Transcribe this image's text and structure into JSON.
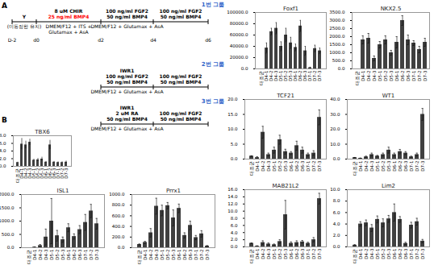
{
  "diagram": {
    "panel_a": "A",
    "panel_b": "B",
    "days": [
      "D-2",
      "d0",
      "d2",
      "d4",
      "d6"
    ],
    "group_color": "#2e62c9",
    "groups": [
      {
        "name": "1번 그룹",
        "above": [
          {
            "from": "D-2",
            "to": "d0",
            "lines": [
              "Y"
            ]
          },
          {
            "from": "d0",
            "to": "d2",
            "lines": [
              "8 uM CHIR",
              {
                "text": "25 ng/ml BMP4",
                "color": "#ff0000"
              }
            ]
          },
          {
            "from": "d2",
            "to": "d4",
            "lines": [
              "100 ng/ml FGF2",
              "50 ng/ml BMP4"
            ]
          },
          {
            "from": "d4",
            "to": "d6",
            "lines": [
              "100 ng/ml FGF2",
              "50 ng/ml BMP4"
            ]
          }
        ],
        "below": [
          {
            "from": "D-2",
            "to": "d0",
            "lines": [
              "(미동정한 유지)"
            ]
          },
          {
            "from": "d0",
            "to": "d2",
            "lines": [
              "DMEM/F12 + ITS +",
              "Glutamax + AsA"
            ]
          },
          {
            "from": "d2",
            "to": "d4",
            "lines": [
              "DMEM/F12 + Glutamax + AsA"
            ]
          }
        ]
      },
      {
        "name": "2번 그룹",
        "above": [
          {
            "from": "d2",
            "to": "d4",
            "lines": [
              "IWR1",
              "100 ng/ml FGF2",
              "50 ng/ml BMP4"
            ]
          },
          {
            "from": "d4",
            "to": "d6",
            "lines": [
              "100 ng/ml FGF2",
              "50 ng/ml BMP4"
            ]
          }
        ],
        "below": [
          {
            "from": "d2",
            "to": "d4",
            "lines": [
              "DMEM/F12 + Glutamax + AsA"
            ]
          }
        ]
      },
      {
        "name": "3번 그룹",
        "above": [
          {
            "from": "d2",
            "to": "d4",
            "lines": [
              "IWR1",
              "2 uM RA",
              "50 ng/ml BMP4"
            ]
          },
          {
            "from": "d4",
            "to": "d6",
            "lines": [
              "100 ng/ml FGF2",
              "50 ng/ml BMP4"
            ]
          }
        ],
        "below": [
          {
            "from": "d2",
            "to": "d4",
            "lines": [
              "DMEM/F12 + Glutamax + AsA"
            ]
          }
        ]
      }
    ]
  },
  "chart_data": [
    {
      "type": "bar",
      "title": "Foxf1",
      "color": "#404040",
      "grid": false,
      "categories": [
        "대조군",
        "D4-1",
        "D4-2",
        "D4-3",
        "D5-1",
        "D5-2",
        "D5-3",
        "D6-1",
        "D6-2",
        "D6-3",
        "D7-1",
        "D7-2",
        "D7-3"
      ],
      "values": [
        0,
        37000,
        66000,
        72000,
        40000,
        60000,
        46000,
        38000,
        76000,
        32000,
        2000,
        36000,
        32000
      ],
      "errors": [
        0,
        9000,
        6000,
        10000,
        8000,
        12000,
        10000,
        6000,
        10000,
        8000,
        1000,
        6000,
        5000
      ],
      "ylim": [
        0,
        100000
      ],
      "yticks": [
        {
          "value": 0,
          "label": "0.0"
        },
        {
          "value": 20000,
          "label": "20000.0"
        },
        {
          "value": 40000,
          "label": "40000.0"
        },
        {
          "value": 60000,
          "label": "60000.0"
        },
        {
          "value": 80000,
          "label": "80000.0"
        },
        {
          "value": 100000,
          "label": "100000.0"
        }
      ]
    },
    {
      "type": "bar",
      "title": "NKX2.5",
      "color": "#404040",
      "grid": false,
      "categories": [
        "대조군",
        "D4-1",
        "D4-2",
        "D4-3",
        "D5-1",
        "D5-2",
        "D5-3",
        "D6-1",
        "D6-2",
        "D6-3",
        "D7-1",
        "D7-2",
        "D7-3"
      ],
      "values": [
        0,
        1800,
        1900,
        650,
        1500,
        1800,
        1000,
        1650,
        3000,
        1800,
        1600,
        1200,
        1650
      ],
      "errors": [
        0,
        250,
        300,
        150,
        200,
        250,
        150,
        350,
        300,
        300,
        150,
        200,
        250
      ],
      "ylim": [
        0,
        3500
      ],
      "yticks": [
        {
          "value": 0,
          "label": "0.0"
        },
        {
          "value": 500,
          "label": "500.0"
        },
        {
          "value": 1000,
          "label": "1000.0"
        },
        {
          "value": 1500,
          "label": "1500.0"
        },
        {
          "value": 2000,
          "label": "2000.0"
        },
        {
          "value": 2500,
          "label": "2500.0"
        },
        {
          "value": 3000,
          "label": "3000.0"
        },
        {
          "value": 3500,
          "label": "3500.0"
        }
      ]
    },
    {
      "type": "bar",
      "title": "TCF21",
      "color": "#404040",
      "grid": false,
      "categories": [
        "대조군",
        "D4-1",
        "D4-2",
        "D4-3",
        "D5-1",
        "D5-2",
        "D5-3",
        "D6-1",
        "D6-2",
        "D6-3",
        "D7-1",
        "D7-2",
        "D7-3"
      ],
      "values": [
        1,
        0.5,
        9,
        1.5,
        3,
        6.5,
        2.5,
        2,
        4.5,
        3,
        1.5,
        2,
        14
      ],
      "errors": [
        0.1,
        0.3,
        2,
        0.5,
        1,
        1.5,
        0.8,
        0.5,
        1.5,
        1,
        0.5,
        0.8,
        2.5
      ],
      "ylim": [
        0,
        20
      ],
      "yticks": [
        {
          "value": 0,
          "label": "0.0"
        },
        {
          "value": 5,
          "label": "5.0"
        },
        {
          "value": 10,
          "label": "10.0"
        },
        {
          "value": 15,
          "label": "15.0"
        },
        {
          "value": 20,
          "label": "20.0"
        }
      ]
    },
    {
      "type": "bar",
      "title": "WT1",
      "color": "#404040",
      "grid": false,
      "categories": [
        "대조군",
        "D4-1",
        "D4-2",
        "D4-3",
        "D5-1",
        "D5-2",
        "D5-3",
        "D6-1",
        "D6-2",
        "D6-3",
        "D7-1",
        "D7-2",
        "D7-3"
      ],
      "values": [
        1,
        0.5,
        1.5,
        3,
        2,
        3,
        6,
        3,
        5,
        4,
        1.5,
        3,
        30
      ],
      "errors": [
        0.1,
        0.2,
        0.5,
        1,
        0.5,
        1,
        2,
        1,
        1.5,
        1,
        0.5,
        1,
        4
      ],
      "ylim": [
        0,
        40
      ],
      "yticks": [
        {
          "value": 0,
          "label": "0.0"
        },
        {
          "value": 10,
          "label": "10.0"
        },
        {
          "value": 20,
          "label": "20.0"
        },
        {
          "value": 30,
          "label": "30.0"
        },
        {
          "value": 40,
          "label": "40.0"
        }
      ]
    },
    {
      "type": "bar",
      "title": "TBX6",
      "color": "#404040",
      "grid": false,
      "categories": [
        "대조군",
        "D4-1",
        "D4-2",
        "D4-3",
        "D5-1",
        "D5-2",
        "D5-3",
        "D6-1",
        "D6-2",
        "D6-3",
        "D7-1",
        "D7-2",
        "D7-3"
      ],
      "values": [
        1,
        5.8,
        5.6,
        6.3,
        1.6,
        1.7,
        1.9,
        1.1,
        5.6,
        1.1,
        1,
        1,
        1.1
      ],
      "errors": [
        0.1,
        1.5,
        1,
        0.8,
        0.3,
        0.4,
        0.5,
        0.2,
        1.2,
        0.2,
        0.2,
        0.2,
        0.3
      ],
      "ylim": [
        0,
        8
      ],
      "yticks": [
        {
          "value": 0,
          "label": "0.0"
        },
        {
          "value": 2,
          "label": "2.0"
        },
        {
          "value": 4,
          "label": "4.0"
        },
        {
          "value": 6,
          "label": "6.0"
        },
        {
          "value": 8,
          "label": "8.0"
        }
      ]
    },
    {
      "type": "bar",
      "title": "ISL1",
      "color": "#404040",
      "grid": false,
      "categories": [
        "대조군",
        "D4-1",
        "D4-2",
        "D4-3",
        "D5-1",
        "D5-2",
        "D5-3",
        "D6-1",
        "D6-2",
        "D6-3",
        "D7-1",
        "D7-2",
        "D7-3"
      ],
      "values": [
        0,
        20,
        80,
        400,
        1000,
        450,
        300,
        750,
        420,
        680,
        950,
        1380,
        900
      ],
      "errors": [
        0,
        10,
        40,
        300,
        850,
        200,
        100,
        150,
        100,
        150,
        300,
        250,
        200
      ],
      "ylim": [
        0,
        2000
      ],
      "yticks": [
        {
          "value": 0,
          "label": "0.0"
        },
        {
          "value": 500,
          "label": "500.0"
        },
        {
          "value": 1000,
          "label": "1000.0"
        },
        {
          "value": 1500,
          "label": "1500.0"
        },
        {
          "value": 2000,
          "label": "2000.0"
        }
      ]
    },
    {
      "type": "bar",
      "title": "Prrx1",
      "color": "#404040",
      "grid": false,
      "categories": [
        "대조군",
        "D4-1",
        "D4-2",
        "D4-3",
        "D5-1",
        "D5-2",
        "D5-3",
        "D6-1",
        "D6-2",
        "D6-3",
        "D7-1",
        "D7-2",
        "D7-3"
      ],
      "values": [
        60,
        100,
        280,
        780,
        700,
        790,
        560,
        740,
        230,
        420,
        190,
        260,
        30
      ],
      "errors": [
        10,
        20,
        80,
        150,
        100,
        60,
        150,
        80,
        50,
        80,
        40,
        60,
        10
      ],
      "ylim": [
        0,
        1000
      ],
      "yticks": [
        {
          "value": 0,
          "label": "0.0"
        },
        {
          "value": 200,
          "label": "200.0"
        },
        {
          "value": 400,
          "label": "400.0"
        },
        {
          "value": 600,
          "label": "600.0"
        },
        {
          "value": 800,
          "label": "800.0"
        },
        {
          "value": 1000,
          "label": "1000.0"
        }
      ]
    },
    {
      "type": "bar",
      "title": "MAB21L2",
      "color": "#404040",
      "grid": false,
      "categories": [
        "대조군",
        "D4-1",
        "D4-2",
        "D4-3",
        "D5-1",
        "D5-2",
        "D5-3",
        "D6-1",
        "D6-2",
        "D6-3",
        "D7-1",
        "D7-2",
        "D7-3"
      ],
      "values": [
        1,
        0.2,
        1.2,
        0.8,
        0.6,
        1.5,
        9,
        1,
        1.2,
        1.4,
        1,
        2,
        13.5
      ],
      "errors": [
        0.1,
        0.1,
        0.5,
        0.3,
        0.2,
        0.5,
        4,
        0.4,
        0.5,
        0.4,
        0.3,
        0.6,
        1.5
      ],
      "ylim": [
        0,
        16
      ],
      "yticks": [
        {
          "value": 0,
          "label": "0.0"
        },
        {
          "value": 2,
          "label": "2.0"
        },
        {
          "value": 4,
          "label": "4.0"
        },
        {
          "value": 6,
          "label": "6.0"
        },
        {
          "value": 8,
          "label": "8.0"
        },
        {
          "value": 10,
          "label": "10.0"
        },
        {
          "value": 12,
          "label": "12.0"
        },
        {
          "value": 14,
          "label": "14.0"
        },
        {
          "value": 16,
          "label": "16.0"
        }
      ]
    },
    {
      "type": "bar",
      "title": "Lim2",
      "color": "#404040",
      "grid": false,
      "categories": [
        "대조군",
        "D4-1",
        "D4-2",
        "D4-3",
        "D5-1",
        "D5-2",
        "D5-3",
        "D6-1",
        "D6-2",
        "D6-3",
        "D7-1",
        "D7-2",
        "D7-3"
      ],
      "values": [
        0.3,
        4,
        4.2,
        3.3,
        4.8,
        4.2,
        4.9,
        6,
        4.8,
        0.6,
        3.8,
        4.4,
        1
      ],
      "errors": [
        0.1,
        0.4,
        0.5,
        0.6,
        0.6,
        0.7,
        0.6,
        1.5,
        0.5,
        0.2,
        0.5,
        0.6,
        0.3
      ],
      "ylim": [
        0,
        10
      ],
      "yticks": [
        {
          "value": 0,
          "label": "0.0"
        },
        {
          "value": 2,
          "label": "2.0"
        },
        {
          "value": 4,
          "label": "4.0"
        },
        {
          "value": 6,
          "label": "6.0"
        },
        {
          "value": 8,
          "label": "8.0"
        },
        {
          "value": 10,
          "label": "10.0"
        }
      ]
    }
  ]
}
